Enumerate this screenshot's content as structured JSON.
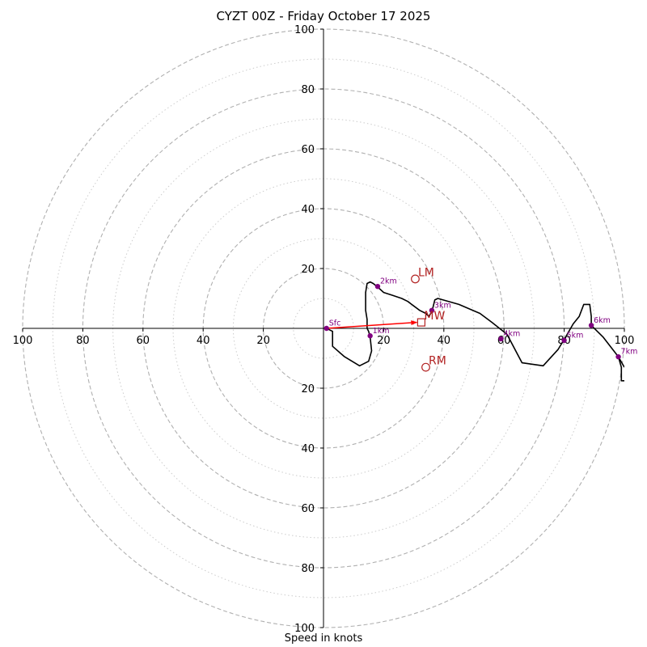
{
  "title": "CYZT 00Z - Friday October 17 2025",
  "chart_data": {
    "type": "hodograph",
    "title": "CYZT 00Z - Friday October 17 2025",
    "xlabel": "Speed in knots",
    "ylabel": "",
    "xlim": [
      -100,
      100
    ],
    "ylim": [
      -100,
      100
    ],
    "units": "knots",
    "rings_major": [
      20,
      40,
      60,
      80,
      100
    ],
    "rings_minor": [
      10,
      30,
      50,
      70,
      90
    ],
    "x_ticks": [
      {
        "value": -100,
        "label": "100"
      },
      {
        "value": -80,
        "label": "80"
      },
      {
        "value": -60,
        "label": "60"
      },
      {
        "value": -40,
        "label": "40"
      },
      {
        "value": -20,
        "label": "20"
      },
      {
        "value": 20,
        "label": "20"
      },
      {
        "value": 40,
        "label": "40"
      },
      {
        "value": 60,
        "label": "60"
      },
      {
        "value": 80,
        "label": "80"
      },
      {
        "value": 100,
        "label": "100"
      }
    ],
    "y_ticks": [
      {
        "value": 100,
        "label": "100"
      },
      {
        "value": 80,
        "label": "80"
      },
      {
        "value": 60,
        "label": "60"
      },
      {
        "value": 40,
        "label": "40"
      },
      {
        "value": 20,
        "label": "20"
      },
      {
        "value": -20,
        "label": "20"
      },
      {
        "value": -40,
        "label": "40"
      },
      {
        "value": -60,
        "label": "60"
      },
      {
        "value": -80,
        "label": "80"
      },
      {
        "value": -100,
        "label": "100"
      }
    ],
    "trace": [
      [
        1,
        0
      ],
      [
        3,
        -1
      ],
      [
        3,
        -6
      ],
      [
        7,
        -9.5
      ],
      [
        12,
        -12.5
      ],
      [
        15,
        -11
      ],
      [
        16,
        -7.5
      ],
      [
        15.5,
        -3
      ],
      [
        15,
        -1
      ],
      [
        14.5,
        0
      ],
      [
        14.5,
        1.5
      ],
      [
        14.5,
        3
      ],
      [
        14,
        6
      ],
      [
        14,
        10
      ],
      [
        14,
        12
      ],
      [
        14.5,
        15
      ],
      [
        15.5,
        15.5
      ],
      [
        16.5,
        15
      ],
      [
        17.8,
        14
      ],
      [
        20,
        12
      ],
      [
        23,
        11
      ],
      [
        26,
        10
      ],
      [
        28,
        9
      ],
      [
        30,
        7.5
      ],
      [
        32,
        6
      ],
      [
        34,
        5
      ],
      [
        35,
        4
      ],
      [
        36,
        5.5
      ],
      [
        36.5,
        7.5
      ],
      [
        37,
        9.5
      ],
      [
        38,
        10
      ],
      [
        45,
        8
      ],
      [
        52,
        5
      ],
      [
        56,
        2
      ],
      [
        58.5,
        0
      ],
      [
        61,
        -2
      ],
      [
        66,
        -11.5
      ],
      [
        73,
        -12.5
      ],
      [
        78,
        -7
      ],
      [
        81,
        -2
      ],
      [
        83,
        1.5
      ],
      [
        85,
        4
      ],
      [
        86.5,
        8
      ],
      [
        88.5,
        8
      ],
      [
        89,
        4
      ],
      [
        89,
        1
      ],
      [
        93,
        -3
      ],
      [
        98,
        -9.5
      ],
      [
        99,
        -13
      ],
      [
        99,
        -17.5
      ],
      [
        100,
        -17.5
      ]
    ],
    "trace_exit": [
      [
        98,
        -9.5
      ],
      [
        100,
        -13
      ]
    ],
    "height_markers": [
      {
        "label": "Sfc",
        "u": 1,
        "v": 0
      },
      {
        "label": "1km",
        "u": 15.5,
        "v": -2.5
      },
      {
        "label": "2km",
        "u": 18,
        "v": 14
      },
      {
        "label": "3km",
        "u": 36,
        "v": 6
      },
      {
        "label": "4km",
        "u": 59,
        "v": -3.5
      },
      {
        "label": "5km",
        "u": 80,
        "v": -4
      },
      {
        "label": "6km",
        "u": 89,
        "v": 1
      },
      {
        "label": "7km",
        "u": 98,
        "v": -9.5
      }
    ],
    "storm_motion": [
      {
        "label": "LM",
        "u": 30.5,
        "v": 16.5,
        "marker": "circle"
      },
      {
        "label": "MW",
        "u": 32.5,
        "v": 2,
        "marker": "square"
      },
      {
        "label": "RM",
        "u": 34,
        "v": -13,
        "marker": "circle"
      }
    ],
    "shear_vector": {
      "from": [
        1,
        0
      ],
      "to": [
        31,
        2
      ]
    },
    "colors": {
      "trace": "#000000",
      "height_marker": "#800080",
      "storm_motion": "#b22222",
      "shear_vector": "#ff0000",
      "rings": "#b0b0b0",
      "axes": "#000000"
    }
  }
}
